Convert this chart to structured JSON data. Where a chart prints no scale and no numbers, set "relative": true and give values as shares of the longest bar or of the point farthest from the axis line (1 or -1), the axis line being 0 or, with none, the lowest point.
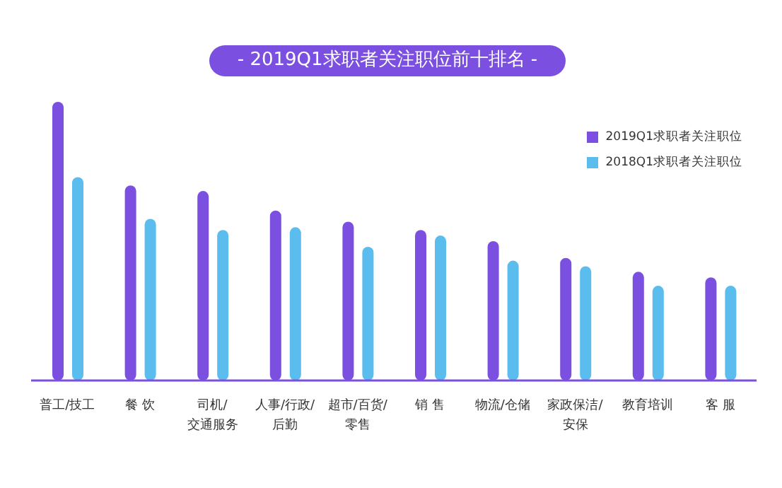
{
  "chart_data": {
    "type": "bar",
    "title": "- 2019Q1求职者关注职位前十排名 -",
    "relative": true,
    "legend": "top right",
    "categories": [
      "普工/技工",
      "餐 饮",
      "司机/\n交通服务",
      "人事/行政/\n后勤",
      "超市/百货/\n零售",
      "销 售",
      "物流/仓储",
      "家政保洁/\n安保",
      "教育培训",
      "客 服"
    ],
    "series": [
      {
        "name": "2019Q1求职者关注职位",
        "color": "#7b4fe0",
        "values": [
          1,
          0.7,
          0.68,
          0.61,
          0.57,
          0.54,
          0.5,
          0.44,
          0.39,
          0.37
        ]
      },
      {
        "name": "2018Q1求职者关注职位",
        "color": "#5bbcee",
        "values": [
          0.73,
          0.58,
          0.54,
          0.55,
          0.48,
          0.52,
          0.43,
          0.41,
          0.34,
          0.34
        ]
      }
    ]
  }
}
